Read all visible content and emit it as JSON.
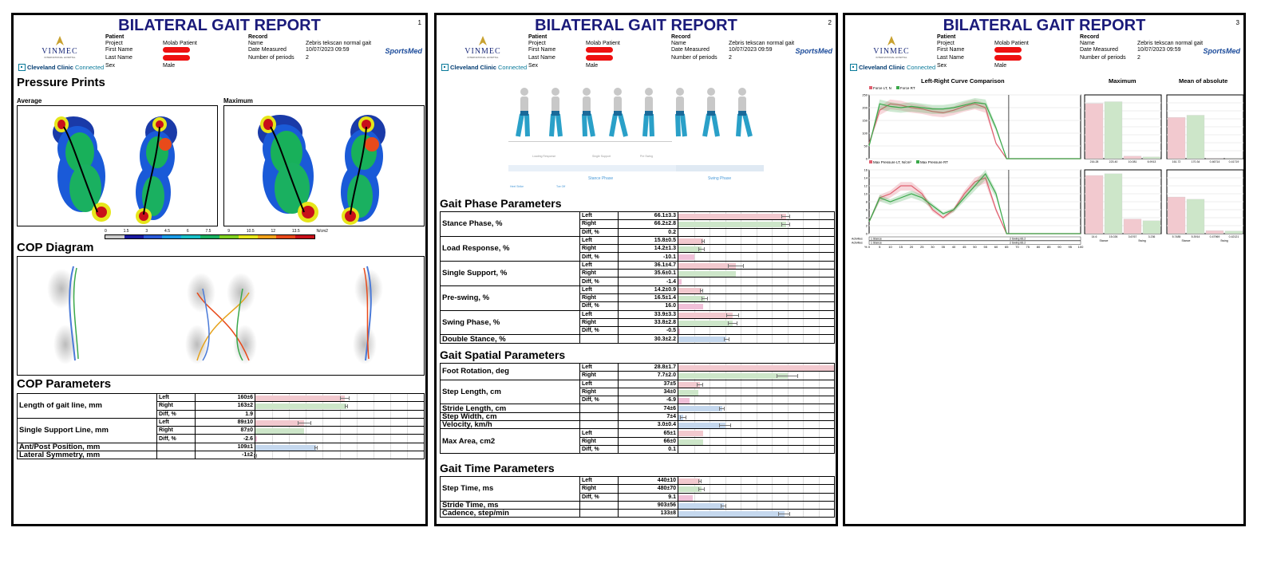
{
  "report_title": "BILATERAL GAIT REPORT",
  "header": {
    "patient_heading": "Patient",
    "record_heading": "Record",
    "patient_labels": [
      "Project",
      "First Name",
      "Last Name",
      "Sex"
    ],
    "project": "Molab Patient",
    "sex": "Male",
    "record_labels": [
      "Name",
      "Date Measured",
      "Number of periods"
    ],
    "record_name": "Zebris tekscan normal gait",
    "date_measured": "10/07/2023 09:59",
    "periods": "2",
    "vinmec": "VINMEC",
    "vinmec_sub": "INTERNATIONAL HOSPITAL",
    "cleveland": "Cleveland Clinic",
    "connected": "Connected",
    "sportsmed": "SportsMed"
  },
  "pages": [
    {
      "number": "1"
    },
    {
      "number": "2"
    },
    {
      "number": "3"
    }
  ],
  "page1": {
    "pressure_title": "Pressure Prints",
    "average_label": "Average",
    "maximum_label": "Maximum",
    "colorbar_ticks": [
      "0",
      "1.5",
      "3",
      "4.5",
      "6",
      "7.5",
      "9",
      "10.5",
      "12",
      "13.5",
      "N/cm2"
    ],
    "colorbar_colors": [
      "#cccccc",
      "#1a1aa0",
      "#2a5ad8",
      "#1a9ae6",
      "#18c0c8",
      "#1ab060",
      "#7fd021",
      "#e6e61a",
      "#f2a21a",
      "#e84a1a",
      "#c8101a"
    ],
    "cop_diagram_title": "COP Diagram",
    "cop_params_title": "COP Parameters",
    "cop_rows": [
      {
        "name": "Length of gait line, mm",
        "rows": [
          {
            "side": "Left",
            "value": "160±6",
            "bar": 0.53,
            "err": 0.03,
            "kind": "l"
          },
          {
            "side": "Right",
            "value": "163±2",
            "bar": 0.54,
            "err": 0.01,
            "kind": "r"
          },
          {
            "side": "Diff, %",
            "value": "1.9",
            "bar": 0.0,
            "err": 0,
            "kind": "d"
          }
        ]
      },
      {
        "name": "Single Support Line, mm",
        "rows": [
          {
            "side": "Left",
            "value": "89±10",
            "bar": 0.29,
            "err": 0.04,
            "kind": "l"
          },
          {
            "side": "Right",
            "value": "87±0",
            "bar": 0.29,
            "err": 0.0,
            "kind": "r"
          },
          {
            "side": "Diff, %",
            "value": "-2.6",
            "bar": 0.01,
            "err": 0,
            "kind": "d"
          }
        ]
      },
      {
        "name": "Ant/Post Position, mm",
        "rows": [
          {
            "side": "",
            "value": "109±1",
            "bar": 0.36,
            "err": 0.01,
            "kind": "b"
          }
        ]
      },
      {
        "name": "Lateral Symmetry, mm",
        "rows": [
          {
            "side": "",
            "value": "-1±2",
            "bar": 0.0,
            "err": 0.01,
            "kind": "b"
          }
        ]
      }
    ]
  },
  "page2": {
    "phase_labels": {
      "loading": "Loading Response",
      "single": "Single Support",
      "pre": "Pre Swing",
      "stance": "Stance Phase",
      "swing": "Swing Phase",
      "toe_off": "Toe Off",
      "heel_strike": "Heel Strike"
    },
    "gait_phase_title": "Gait Phase Parameters",
    "gait_phase_rows": [
      {
        "name": "Stance Phase, %",
        "rows": [
          {
            "side": "Left",
            "value": "66.1±3.3",
            "bar": 0.69,
            "err": 0.03,
            "kind": "l"
          },
          {
            "side": "Right",
            "value": "66.2±2.8",
            "bar": 0.69,
            "err": 0.03,
            "kind": "r"
          },
          {
            "side": "Diff, %",
            "value": "0.2",
            "bar": 0.0,
            "err": 0,
            "kind": "d"
          }
        ]
      },
      {
        "name": "Load Response, %",
        "rows": [
          {
            "side": "Left",
            "value": "15.8±0.5",
            "bar": 0.16,
            "err": 0.01,
            "kind": "l"
          },
          {
            "side": "Right",
            "value": "14.2±1.3",
            "bar": 0.15,
            "err": 0.02,
            "kind": "r"
          },
          {
            "side": "Diff, %",
            "value": "-10.1",
            "bar": 0.1,
            "err": 0,
            "kind": "d"
          }
        ]
      },
      {
        "name": "Single Support, %",
        "rows": [
          {
            "side": "Left",
            "value": "36.1±4.7",
            "bar": 0.37,
            "err": 0.05,
            "kind": "l"
          },
          {
            "side": "Right",
            "value": "35.6±0.1",
            "bar": 0.37,
            "err": 0.0,
            "kind": "r"
          },
          {
            "side": "Diff, %",
            "value": "-1.4",
            "bar": 0.02,
            "err": 0,
            "kind": "d"
          }
        ]
      },
      {
        "name": "Pre-swing, %",
        "rows": [
          {
            "side": "Left",
            "value": "14.2±0.9",
            "bar": 0.15,
            "err": 0.01,
            "kind": "l"
          },
          {
            "side": "Right",
            "value": "16.5±1.4",
            "bar": 0.17,
            "err": 0.02,
            "kind": "r"
          },
          {
            "side": "Diff, %",
            "value": "16.0",
            "bar": 0.16,
            "err": 0,
            "kind": "d"
          }
        ]
      },
      {
        "name": "Swing Phase, %",
        "rows": [
          {
            "side": "Left",
            "value": "33.9±3.3",
            "bar": 0.35,
            "err": 0.04,
            "kind": "l"
          },
          {
            "side": "Right",
            "value": "33.8±2.8",
            "bar": 0.35,
            "err": 0.03,
            "kind": "r"
          },
          {
            "side": "Diff, %",
            "value": "-0.5",
            "bar": 0.01,
            "err": 0,
            "kind": "d"
          }
        ]
      },
      {
        "name": "Double Stance, %",
        "rows": [
          {
            "side": "",
            "value": "30.3±2.2",
            "bar": 0.31,
            "err": 0.02,
            "kind": "b"
          }
        ]
      }
    ],
    "gait_spatial_title": "Gait Spatial Parameters",
    "gait_spatial_rows": [
      {
        "name": "Foot Rotation, deg",
        "rows": [
          {
            "side": "Left",
            "value": "28.8±1.7",
            "bar": 1.0,
            "err": 0.0,
            "kind": "l"
          },
          {
            "side": "Right",
            "value": "7.7±2.0",
            "bar": 0.7,
            "err": 0.07,
            "kind": "r"
          }
        ]
      },
      {
        "name": "Step Length, cm",
        "rows": [
          {
            "side": "Left",
            "value": "37±5",
            "bar": 0.14,
            "err": 0.02,
            "kind": "l"
          },
          {
            "side": "Right",
            "value": "34±0",
            "bar": 0.13,
            "err": 0.0,
            "kind": "r"
          },
          {
            "side": "Diff, %",
            "value": "-6.9",
            "bar": 0.07,
            "err": 0,
            "kind": "d"
          }
        ]
      },
      {
        "name": "Stride Length, cm",
        "rows": [
          {
            "side": "",
            "value": "74±6",
            "bar": 0.28,
            "err": 0.02,
            "kind": "b"
          }
        ]
      },
      {
        "name": "Step Width, cm",
        "rows": [
          {
            "side": "",
            "value": "7±4",
            "bar": 0.03,
            "err": 0.02,
            "kind": "b"
          }
        ]
      },
      {
        "name": "Velocity, km/h",
        "rows": [
          {
            "side": "",
            "value": "3.0±0.4",
            "bar": 0.3,
            "err": 0.04,
            "kind": "b"
          }
        ]
      },
      {
        "name": "Max Area, cm2",
        "rows": [
          {
            "side": "Left",
            "value": "65±1",
            "bar": 0.16,
            "err": 0.0,
            "kind": "l"
          },
          {
            "side": "Right",
            "value": "66±0",
            "bar": 0.16,
            "err": 0.0,
            "kind": "r"
          },
          {
            "side": "Diff, %",
            "value": "0.1",
            "bar": 0.0,
            "err": 0,
            "kind": "d"
          }
        ]
      }
    ],
    "gait_time_title": "Gait Time Parameters",
    "gait_time_rows": [
      {
        "name": "Step Time, ms",
        "rows": [
          {
            "side": "Left",
            "value": "440±10",
            "bar": 0.14,
            "err": 0.01,
            "kind": "l"
          },
          {
            "side": "Right",
            "value": "480±70",
            "bar": 0.15,
            "err": 0.02,
            "kind": "r"
          },
          {
            "side": "Diff, %",
            "value": "9.1",
            "bar": 0.09,
            "err": 0,
            "kind": "d"
          }
        ]
      },
      {
        "name": "Stride Time, ms",
        "rows": [
          {
            "side": "",
            "value": "903±56",
            "bar": 0.29,
            "err": 0.02,
            "kind": "b"
          }
        ]
      },
      {
        "name": "Cadence, step/min",
        "rows": [
          {
            "side": "",
            "value": "133±8",
            "bar": 0.68,
            "err": 0.04,
            "kind": "b"
          }
        ]
      }
    ]
  },
  "page3": {
    "curve_title": "Left-Right Curve Comparison",
    "maximum_title": "Maximum",
    "mean_title": "Mean of absolute",
    "legend_top": [
      "Force LT, N",
      "Force RT"
    ],
    "legend_bottom": [
      "Max Pressure LT, N/cm²",
      "Max Pressure RT"
    ],
    "activities": [
      {
        "label": "Activities",
        "a": "1 Stance",
        "b": "2 Swing 66.2"
      },
      {
        "label": "Activities",
        "a": "1 Stance",
        "b": "2 Swing 66.2"
      }
    ],
    "chart_data": [
      {
        "type": "line",
        "title": "Left-Right Curve Comparison",
        "x": [
          0,
          5,
          10,
          15,
          20,
          25,
          30,
          35,
          40,
          45,
          50,
          55,
          60,
          65,
          70,
          75,
          80,
          85,
          90,
          95,
          100
        ],
        "ylim": [
          0,
          250
        ],
        "yticks": [
          "250",
          "200",
          "150",
          "100",
          "50",
          "0"
        ],
        "series": [
          {
            "name": "Force LT, N",
            "color": "#e06070",
            "values": [
              60,
              190,
              215,
              210,
              200,
              195,
              185,
              180,
              190,
              205,
              215,
              200,
              60,
              0,
              0,
              0,
              0,
              0,
              0,
              0,
              0
            ]
          },
          {
            "name": "Force RT",
            "color": "#3aa84a",
            "values": [
              50,
              215,
              205,
              200,
              205,
              200,
              195,
              195,
              200,
              210,
              220,
              215,
              120,
              0,
              0,
              0,
              0,
              0,
              0,
              0,
              0
            ]
          }
        ]
      },
      {
        "type": "line",
        "title": "",
        "x": [
          0,
          5,
          10,
          15,
          20,
          25,
          30,
          35,
          40,
          45,
          50,
          55,
          60,
          65,
          70,
          75,
          80,
          85,
          90,
          95,
          100
        ],
        "xticks": [
          "0",
          "5",
          "10",
          "15",
          "20",
          "25",
          "30",
          "35",
          "40",
          "45",
          "50",
          "55",
          "60",
          "65",
          "70",
          "75",
          "80",
          "85",
          "90",
          "95",
          "100"
        ],
        "xlabel": "%",
        "ylim": [
          0,
          16
        ],
        "yticks": [
          "16",
          "14",
          "12",
          "10",
          "8",
          "6",
          "4",
          "2",
          "0"
        ],
        "series": [
          {
            "name": "Max Pressure LT, N/cm²",
            "color": "#e06070",
            "values": [
              3,
              9,
              10,
              12,
              12,
              10,
              6,
              4,
              6,
              10,
              13,
              14,
              6,
              0,
              0,
              0,
              0,
              0,
              0,
              0,
              0
            ]
          },
          {
            "name": "Max Pressure RT",
            "color": "#3aa84a",
            "values": [
              3,
              9,
              8,
              9,
              10,
              9,
              7,
              5,
              6,
              9,
              12,
              15,
              10,
              0,
              0,
              0,
              0,
              0,
              0,
              0,
              0
            ]
          }
        ]
      },
      {
        "type": "bar",
        "title": "Maximum",
        "categories": [
          "216.28",
          "223.40",
          "10.081",
          "6.9913"
        ],
        "values": [
          216.28,
          223.4,
          10.081,
          6.9913
        ],
        "colors": [
          "#f2c9cf",
          "#cde6c9",
          "#f2c9cf",
          "#cde6c9"
        ],
        "ylim": [
          0,
          250
        ]
      },
      {
        "type": "bar",
        "title": "Mean of absolute",
        "categories": [
          "161.72",
          "170.34",
          "0.46714",
          "0.41719"
        ],
        "values": [
          161.72,
          170.34,
          0.46714,
          0.41719
        ],
        "colors": [
          "#f2c9cf",
          "#cde6c9",
          "#f2c9cf",
          "#cde6c9"
        ],
        "ylim": [
          0,
          250
        ]
      },
      {
        "type": "bar",
        "title": "",
        "categories": [
          "14.6",
          "15.026",
          "3.6767",
          "3.236"
        ],
        "values": [
          14.6,
          15.026,
          3.6767,
          3.236
        ],
        "group_labels": [
          "Stance",
          "Swing"
        ],
        "colors": [
          "#f2c9cf",
          "#cde6c9",
          "#f2c9cf",
          "#cde6c9"
        ],
        "ylim": [
          0,
          16
        ]
      },
      {
        "type": "bar",
        "title": "",
        "categories": [
          "5.7485",
          "5.3914",
          "0.47969",
          "0.42121"
        ],
        "values": [
          5.7485,
          5.3914,
          0.47969,
          0.42121
        ],
        "group_labels": [
          "Stance",
          "Swing"
        ],
        "colors": [
          "#f2c9cf",
          "#cde6c9",
          "#f2c9cf",
          "#cde6c9"
        ],
        "ylim": [
          0,
          10
        ]
      }
    ]
  }
}
